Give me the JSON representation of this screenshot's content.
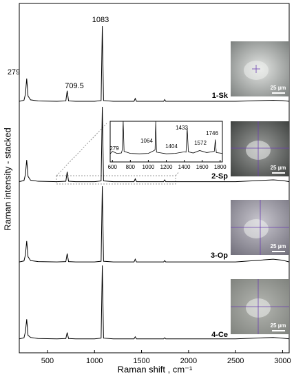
{
  "chart_data": [
    {
      "type": "line",
      "x_label": "Raman shift , cm⁻¹",
      "y_label": "Raman intensity - stacked",
      "x": [
        200,
        250,
        265,
        279,
        293,
        320,
        400,
        600,
        695,
        709.5,
        724,
        800,
        1000,
        1070,
        1083,
        1096,
        1200,
        1420,
        1433,
        1446,
        1600,
        1735,
        1746,
        1757,
        2000,
        2500,
        2900,
        3000,
        3070
      ],
      "xlim": [
        200,
        3070
      ],
      "xticks": [
        500,
        1000,
        1500,
        2000,
        2500,
        3000
      ],
      "ylim": [
        0,
        100
      ],
      "series": [
        {
          "name": "1-Sk",
          "color": "#000000",
          "values": [
            72,
            72.3,
            74,
            78.5,
            73.5,
            72.4,
            72.1,
            72,
            72.1,
            75,
            72.1,
            72,
            72,
            72.2,
            93.5,
            72.2,
            72,
            72,
            72.8,
            72,
            72,
            72,
            72.5,
            72,
            72,
            72,
            72.3,
            72.2,
            72
          ]
        },
        {
          "name": "2-Sp",
          "color": "#000000",
          "values": [
            49,
            49.3,
            51,
            55.2,
            50.5,
            49.4,
            49.1,
            49,
            49.1,
            51.8,
            49.1,
            49,
            49,
            49.2,
            70.4,
            49.2,
            49,
            49,
            49.8,
            49,
            49,
            49,
            49.5,
            49,
            49,
            49,
            49.5,
            49.3,
            49
          ]
        },
        {
          "name": "3-Op",
          "color": "#000000",
          "values": [
            26,
            26.3,
            28,
            32,
            27.5,
            26.4,
            26.1,
            26,
            26.1,
            28.4,
            26.1,
            26,
            26,
            26.2,
            47.7,
            26.2,
            26,
            26,
            26.8,
            26,
            26,
            26,
            26.4,
            26,
            26,
            26,
            26.8,
            26.5,
            26
          ]
        },
        {
          "name": "4-Ce",
          "color": "#000000",
          "values": [
            4,
            4.3,
            6,
            9.6,
            5,
            4.4,
            4.1,
            4,
            4.1,
            5.8,
            4.1,
            4,
            4,
            4.2,
            25,
            4.2,
            4,
            4,
            4.6,
            4,
            4,
            4,
            4.3,
            4,
            4,
            4,
            4.4,
            4.2,
            4
          ]
        }
      ],
      "annotations": [
        "279",
        "709.5",
        "1083"
      ]
    },
    {
      "type": "line",
      "x": [
        575,
        600,
        650,
        700,
        710,
        720,
        730,
        800,
        900,
        1000,
        1064,
        1075,
        1083,
        1091,
        1200,
        1300,
        1404,
        1420,
        1433,
        1446,
        1500,
        1572,
        1650,
        1735,
        1746,
        1757,
        1825
      ],
      "xlim": [
        575,
        1825
      ],
      "xticks": [
        600,
        800,
        1000,
        1200,
        1400,
        1600,
        1800
      ],
      "ylim": [
        0,
        10
      ],
      "series": [
        {
          "color": "#000000",
          "values": [
            2,
            2.6,
            2.1,
            2.2,
            3,
            10,
            2.6,
            2.1,
            2,
            2.1,
            2.8,
            3,
            10,
            2.4,
            2,
            2.1,
            2.5,
            2.4,
            8.3,
            2.5,
            2.2,
            2.8,
            2.3,
            2.6,
            5.5,
            2.3,
            2.1
          ]
        }
      ],
      "annotations": [
        "279",
        "1064",
        "1404",
        "1433",
        "1572",
        "1746"
      ]
    }
  ],
  "images": [
    {
      "scale": "25 µm"
    },
    {
      "scale": "25 µm"
    },
    {
      "scale": "25 µm"
    },
    {
      "scale": "25 µm"
    }
  ]
}
